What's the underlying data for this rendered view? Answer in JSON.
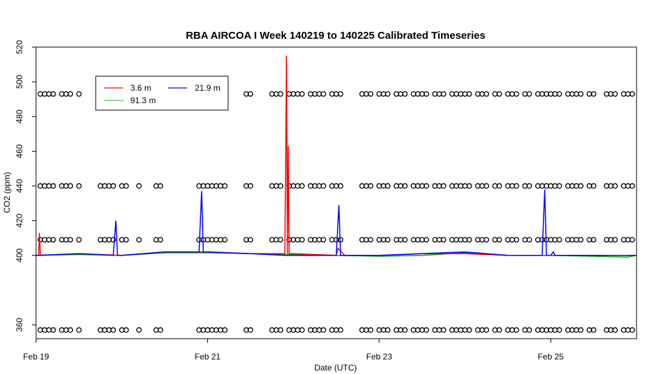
{
  "chart_data": {
    "type": "line",
    "title": "RBA AIRCOA I  Week 140219 to 140225  Calibrated Timeseries",
    "xlabel": "Date (UTC)",
    "ylabel": "CO2 (ppm)",
    "xlim": [
      19.0,
      26.0
    ],
    "ylim": [
      352,
      520
    ],
    "y_ticks": [
      360,
      400,
      420,
      440,
      460,
      480,
      500,
      520
    ],
    "x_ticks": [
      {
        "value": 19,
        "label": "Feb 19"
      },
      {
        "value": 21,
        "label": "Feb 21"
      },
      {
        "value": 23,
        "label": "Feb 23"
      },
      {
        "value": 25,
        "label": "Feb 25"
      }
    ],
    "legend_position": "top-left",
    "series": [
      {
        "name": "3.6 m",
        "color": "#ff0000",
        "x": [
          19.0,
          19.03,
          19.04,
          19.05,
          19.5,
          20.0,
          20.5,
          21.0,
          21.5,
          21.9,
          21.92,
          21.93,
          21.94,
          21.95,
          22.0,
          22.5,
          22.52,
          22.6,
          23.0,
          23.5,
          24.0,
          24.5,
          25.0,
          25.5,
          26.0
        ],
        "y": [
          400,
          400,
          413,
          400,
          401,
          400,
          402,
          402,
          401,
          401,
          515,
          401,
          463,
          401,
          401,
          400,
          404,
          400,
          400,
          401,
          401,
          400,
          400,
          400,
          400
        ]
      },
      {
        "name": "21.9 m",
        "color": "#0000ff",
        "x": [
          19.0,
          19.5,
          19.9,
          19.93,
          19.95,
          20.0,
          20.5,
          20.9,
          20.93,
          20.95,
          21.0,
          21.5,
          21.9,
          22.0,
          22.5,
          22.53,
          22.55,
          23.0,
          23.5,
          24.0,
          24.5,
          24.9,
          24.93,
          24.95,
          25.0,
          25.03,
          25.05,
          25.5,
          26.0
        ],
        "y": [
          400,
          401,
          400,
          420,
          400,
          400,
          402,
          402,
          437,
          402,
          402,
          401,
          400,
          400,
          400,
          429,
          400,
          400,
          401,
          402,
          400,
          400,
          438,
          400,
          400,
          402,
          400,
          400,
          400
        ]
      },
      {
        "name": "91.3 m",
        "color": "#00aa00",
        "x": [
          19.0,
          19.5,
          20.0,
          20.5,
          21.0,
          21.5,
          22.0,
          22.5,
          23.0,
          23.5,
          24.0,
          24.5,
          25.0,
          25.5,
          25.9,
          26.0
        ],
        "y": [
          400,
          400.5,
          400,
          401.5,
          401.5,
          401,
          400.5,
          400,
          399.5,
          400,
          401.5,
          400,
          400,
          399.5,
          399,
          400
        ]
      }
    ],
    "markers": {
      "color": "#000000",
      "levels": [
        357,
        409,
        440,
        493
      ],
      "x": [
        19.05,
        19.1,
        19.15,
        19.2,
        19.3,
        19.35,
        19.4,
        19.5,
        19.75,
        19.8,
        19.85,
        19.9,
        20.0,
        20.05,
        20.2,
        20.4,
        20.45,
        20.9,
        20.95,
        21.0,
        21.05,
        21.1,
        21.15,
        21.2,
        21.45,
        21.5,
        21.75,
        21.8,
        21.85,
        21.95,
        22.0,
        22.05,
        22.1,
        22.2,
        22.25,
        22.3,
        22.35,
        22.45,
        22.5,
        22.55,
        22.8,
        22.85,
        22.9,
        23.0,
        23.05,
        23.1,
        23.2,
        23.25,
        23.3,
        23.4,
        23.45,
        23.5,
        23.55,
        23.65,
        23.7,
        23.75,
        23.85,
        23.9,
        23.95,
        24.0,
        24.05,
        24.15,
        24.2,
        24.25,
        24.35,
        24.4,
        24.5,
        24.55,
        24.6,
        24.7,
        24.75,
        24.85,
        24.9,
        24.95,
        25.0,
        25.05,
        25.1,
        25.2,
        25.25,
        25.3,
        25.35,
        25.45,
        25.5,
        25.65,
        25.7,
        25.75,
        25.85,
        25.9,
        25.95
      ]
    },
    "legend": {
      "labels": [
        "3.6 m",
        "21.9 m",
        "91.3 m"
      ]
    }
  }
}
